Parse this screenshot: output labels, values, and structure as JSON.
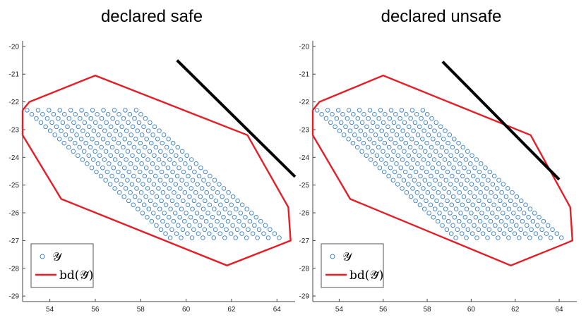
{
  "colors": {
    "points": "#3a7fc4",
    "boundary": "#e41e26",
    "line": "#000000",
    "axis": "#444444"
  },
  "chart_data": [
    {
      "type": "scatter",
      "title": "declared safe",
      "xlabel": "",
      "ylabel": "",
      "xlim": [
        52.8,
        64.8
      ],
      "ylim": [
        -29.2,
        -19.8
      ],
      "xticks": [
        54,
        56,
        58,
        60,
        62,
        64
      ],
      "yticks": [
        -20,
        -21,
        -22,
        -23,
        -24,
        -25,
        -26,
        -27,
        -28,
        -29
      ],
      "legend": {
        "placement": "bottom-left",
        "entries": [
          "𝒴",
          "bd(𝒴̃)"
        ]
      },
      "points_region": {
        "corner_a": [
          53.0,
          -22.3
        ],
        "corner_b": [
          57.8,
          -22.3
        ],
        "corner_c": [
          64.1,
          -26.9
        ],
        "corner_d": [
          59.3,
          -26.9
        ],
        "rows": 11,
        "cols": 32
      },
      "boundary_polygon": [
        [
          52.8,
          -22.3
        ],
        [
          53.1,
          -22.0
        ],
        [
          56.0,
          -21.05
        ],
        [
          62.7,
          -23.2
        ],
        [
          64.5,
          -25.8
        ],
        [
          64.6,
          -27.0
        ],
        [
          64.3,
          -27.1
        ],
        [
          61.8,
          -27.9
        ],
        [
          54.5,
          -25.5
        ],
        [
          52.8,
          -23.2
        ],
        [
          52.8,
          -22.3
        ]
      ],
      "black_line": [
        [
          59.6,
          -20.5
        ],
        [
          64.8,
          -24.7
        ]
      ]
    },
    {
      "type": "scatter",
      "title": "declared unsafe",
      "xlabel": "",
      "ylabel": "",
      "xlim": [
        52.8,
        64.8
      ],
      "ylim": [
        -29.2,
        -19.8
      ],
      "xticks": [
        54,
        56,
        58,
        60,
        62,
        64
      ],
      "yticks": [
        -20,
        -21,
        -22,
        -23,
        -24,
        -25,
        -26,
        -27,
        -28,
        -29
      ],
      "legend": {
        "placement": "bottom-left",
        "entries": [
          "𝒴",
          "bd(𝒴̃)"
        ]
      },
      "points_region": {
        "corner_a": [
          53.0,
          -22.3
        ],
        "corner_b": [
          57.8,
          -22.3
        ],
        "corner_c": [
          64.1,
          -26.9
        ],
        "corner_d": [
          59.3,
          -26.9
        ],
        "rows": 11,
        "cols": 32
      },
      "boundary_polygon": [
        [
          52.8,
          -22.3
        ],
        [
          53.1,
          -22.0
        ],
        [
          56.0,
          -21.05
        ],
        [
          62.7,
          -23.2
        ],
        [
          64.5,
          -25.8
        ],
        [
          64.6,
          -27.0
        ],
        [
          64.3,
          -27.1
        ],
        [
          61.8,
          -27.9
        ],
        [
          54.5,
          -25.5
        ],
        [
          52.8,
          -23.2
        ],
        [
          52.8,
          -22.3
        ]
      ],
      "black_line": [
        [
          58.7,
          -20.55
        ],
        [
          64.0,
          -24.8
        ]
      ]
    }
  ]
}
